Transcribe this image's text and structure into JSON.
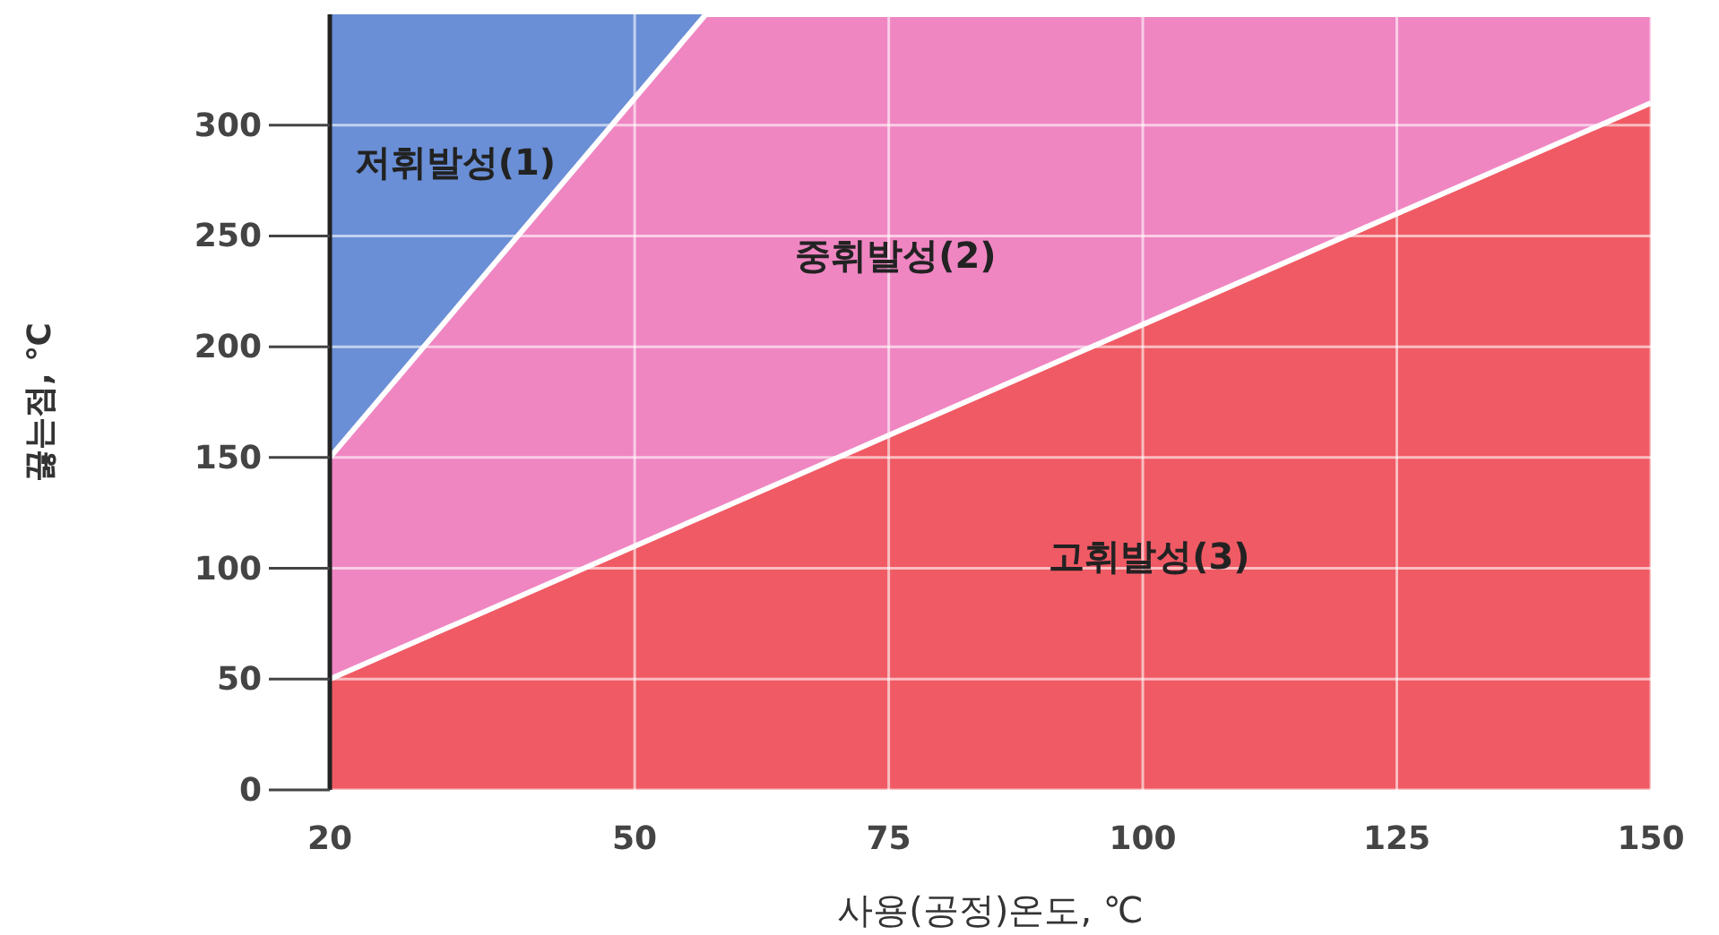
{
  "chart_data": {
    "type": "area",
    "stacked": true,
    "x": [
      20,
      57,
      150
    ],
    "series": [
      {
        "name": "고휘발성(3)",
        "color": "#f05a64",
        "values": [
          50,
          124,
          310
        ]
      },
      {
        "name": "중휘발성(2)",
        "color": "#ef86c2",
        "values": [
          100,
          226,
          40
        ]
      },
      {
        "name": "저휘발성(1)",
        "color": "#6a8fd6",
        "values": [
          200,
          0,
          0
        ]
      }
    ],
    "xlabel": "사용(공정)온도, ℃",
    "ylabel": "끓는점, ℃",
    "xlim": [
      20,
      150
    ],
    "ylim": [
      0,
      350
    ],
    "xticks": [
      20,
      50,
      75,
      100,
      125,
      150
    ],
    "yticks": [
      0,
      50,
      100,
      150,
      200,
      250,
      300
    ],
    "grid": true,
    "legend": false
  }
}
